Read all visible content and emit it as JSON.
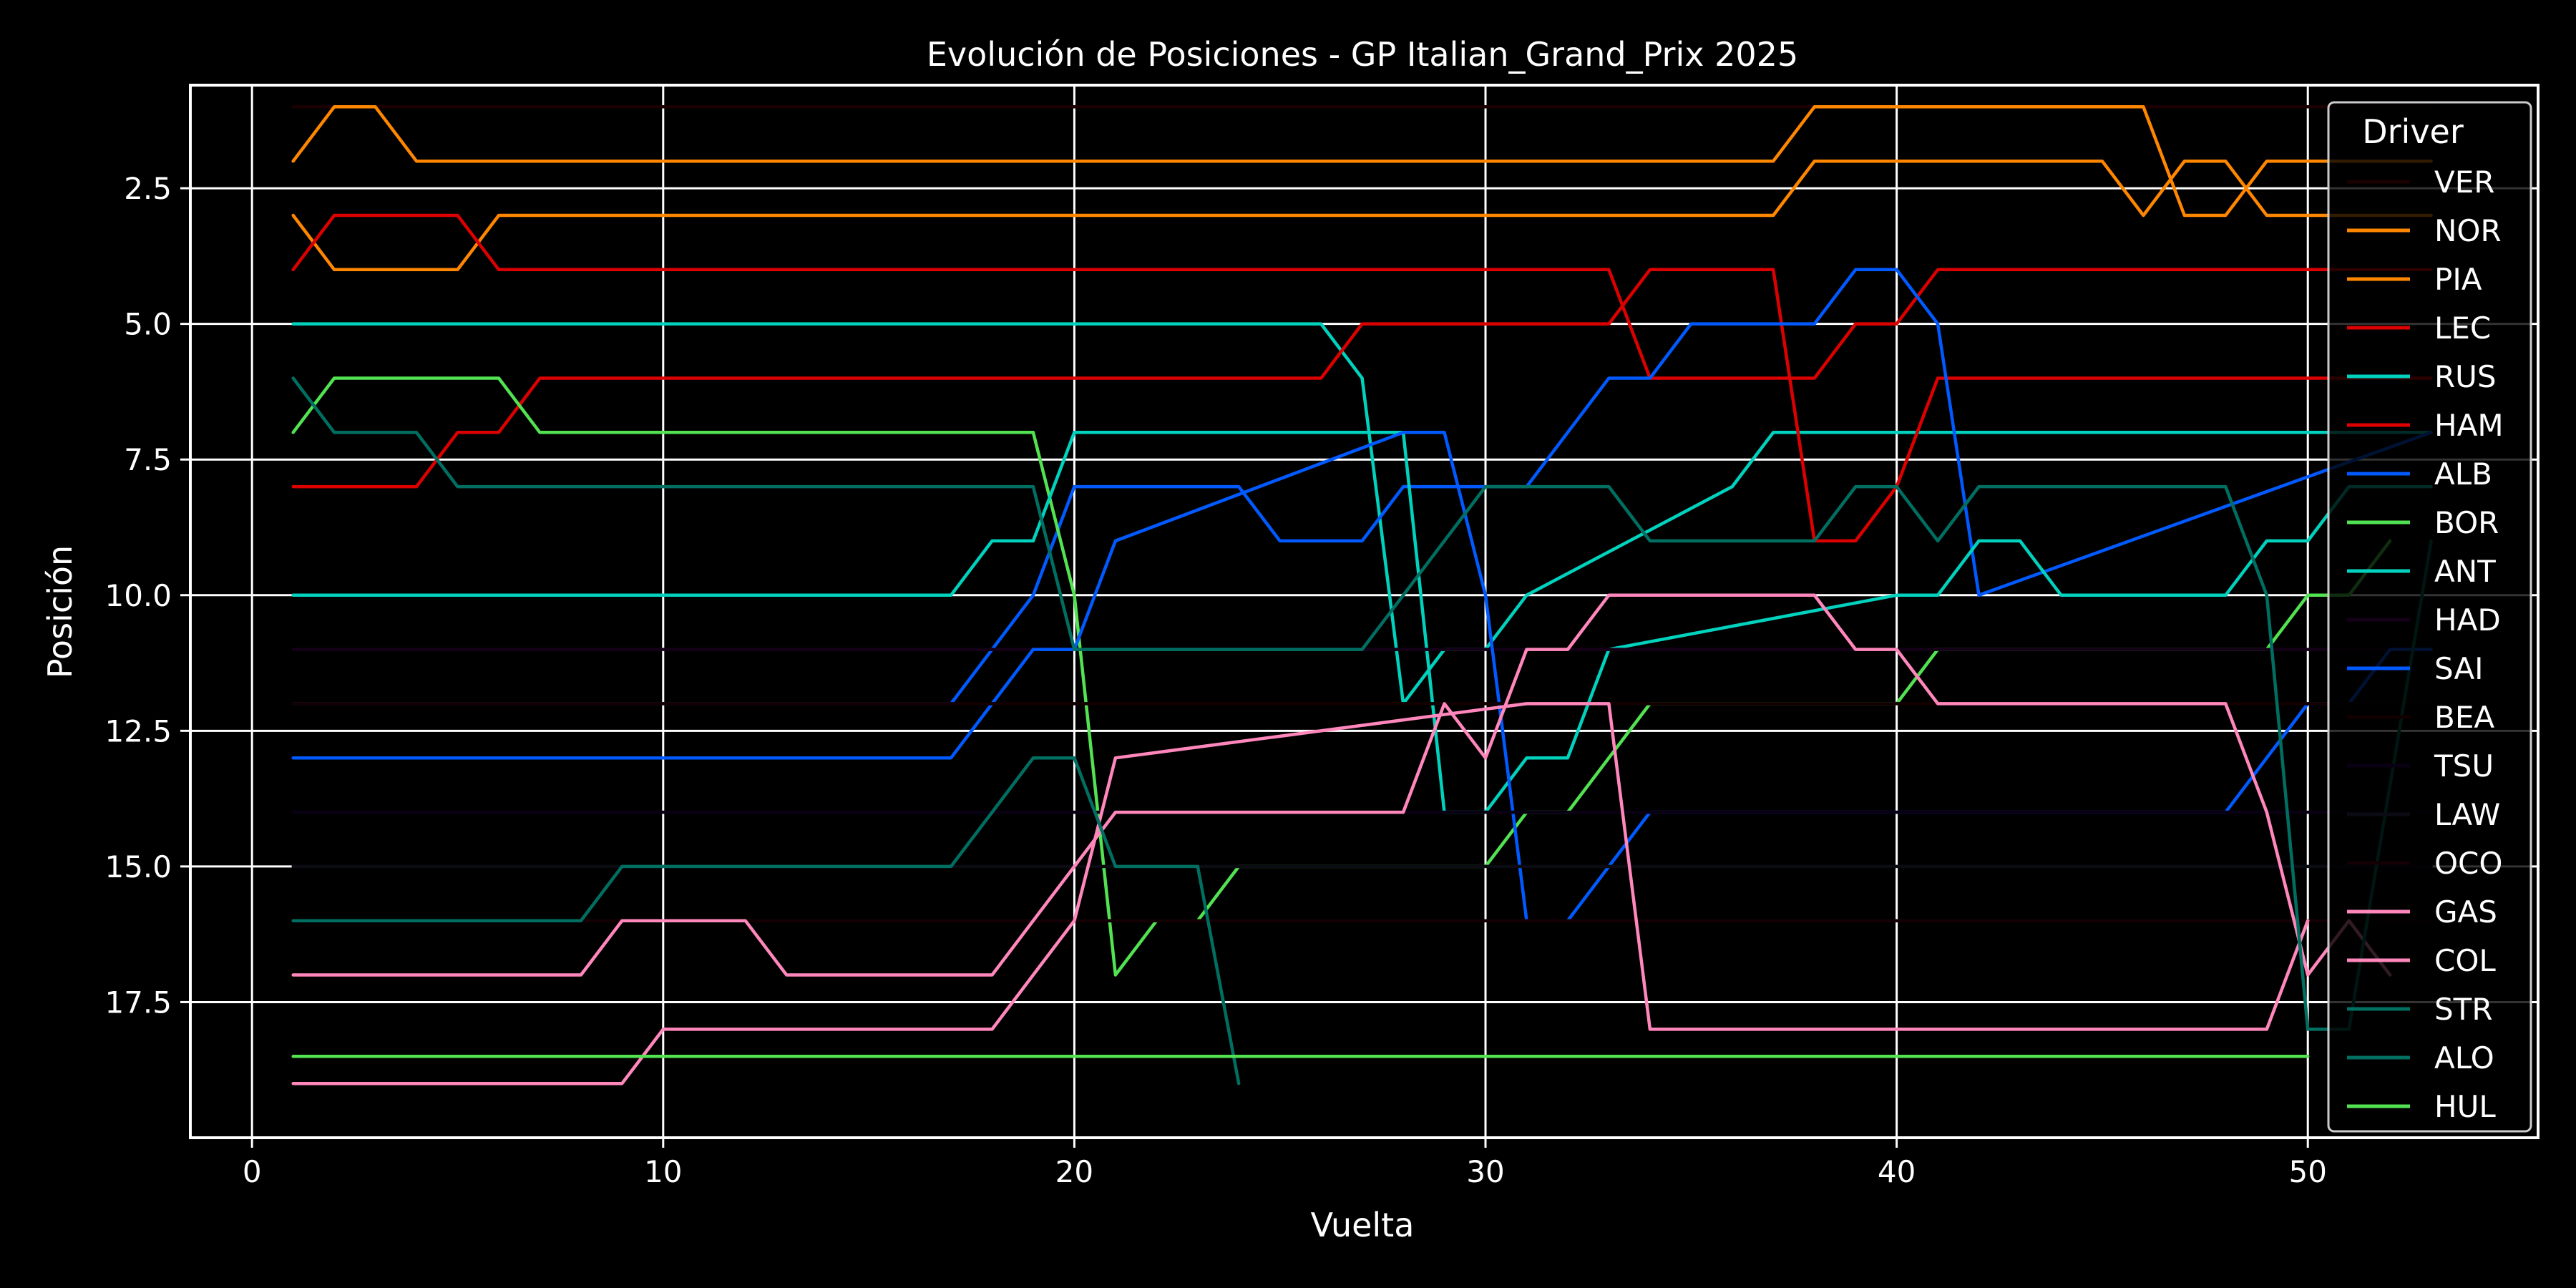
{
  "chart_data": {
    "type": "line",
    "title": "Evolución de Posiciones - GP Italian_Grand_Prix 2025",
    "xlabel": "Vuelta",
    "ylabel": "Posición",
    "xlim": [
      -1.5,
      55.6
    ],
    "ylim": [
      20.0,
      0.6
    ],
    "y_inverted": true,
    "xticks": [
      0,
      10,
      20,
      30,
      40,
      50
    ],
    "yticks": [
      2.5,
      5.0,
      7.5,
      10.0,
      12.5,
      15.0,
      17.5
    ],
    "ytick_labels": [
      "2.5",
      "5.0",
      "7.5",
      "10.0",
      "12.5",
      "15.0",
      "17.5"
    ],
    "grid": true,
    "legend_title": "Driver",
    "legend_position": "right",
    "series": [
      {
        "name": "VER",
        "color": "#1a0000",
        "dash": "solid",
        "x": [
          1,
          53
        ],
        "y": [
          1,
          1
        ]
      },
      {
        "name": "NOR",
        "color": "#ff8700",
        "dash": "solid",
        "x": [
          1,
          2,
          3,
          4,
          5,
          37,
          38,
          46,
          47,
          48,
          49,
          53
        ],
        "y": [
          2,
          1,
          1,
          2,
          2,
          2,
          1,
          1,
          3,
          3,
          2,
          2
        ]
      },
      {
        "name": "PIA",
        "color": "#ff8700",
        "dash": "solid",
        "x": [
          1,
          2,
          5,
          6,
          37,
          38,
          45,
          46,
          47,
          48,
          49,
          53
        ],
        "y": [
          3,
          4,
          4,
          3,
          3,
          2,
          2,
          3,
          2,
          2,
          3,
          3
        ]
      },
      {
        "name": "LEC",
        "color": "#dc0000",
        "dash": "solid",
        "x": [
          1,
          2,
          5,
          6,
          33,
          34,
          38,
          39,
          40,
          41,
          53
        ],
        "y": [
          4,
          3,
          3,
          4,
          4,
          6,
          6,
          5,
          5,
          4,
          4
        ]
      },
      {
        "name": "RUS",
        "color": "#00d2be",
        "dash": "solid",
        "x": [
          1,
          26,
          27,
          28,
          29,
          30,
          31,
          36,
          37,
          53
        ],
        "y": [
          5,
          5,
          6,
          12,
          11,
          11,
          10,
          8,
          7,
          7
        ]
      },
      {
        "name": "HAM",
        "color": "#dc0000",
        "dash": "solid",
        "x": [
          1,
          4,
          5,
          6,
          7,
          26,
          27,
          33,
          34,
          37,
          38,
          39,
          40,
          41,
          42,
          53
        ],
        "y": [
          8,
          8,
          7,
          7,
          6,
          6,
          5,
          5,
          4,
          4,
          9,
          9,
          8,
          6,
          6,
          6
        ]
      },
      {
        "name": "ALB",
        "color": "#005aff",
        "dash": "solid",
        "x": [
          1,
          17,
          18,
          19,
          20,
          21,
          24,
          25,
          27,
          28,
          31,
          32,
          33,
          34,
          35,
          36,
          38,
          39,
          40,
          41,
          42,
          53
        ],
        "y": [
          12,
          12,
          11,
          10,
          8,
          8,
          8,
          9,
          9,
          8,
          8,
          7,
          6,
          6,
          5,
          5,
          5,
          4,
          4,
          5,
          10,
          7
        ]
      },
      {
        "name": "BOR",
        "color": "#52e252",
        "dash": "solid",
        "x": [
          1,
          2,
          6,
          7,
          19,
          20,
          21,
          22,
          23,
          24,
          30,
          31,
          32,
          33,
          34,
          40,
          41,
          49,
          50,
          51,
          52
        ],
        "y": [
          7,
          6,
          6,
          7,
          7,
          10,
          17,
          16,
          16,
          15,
          15,
          14,
          14,
          13,
          12,
          12,
          11,
          11,
          10,
          10,
          9
        ]
      },
      {
        "name": "ANT",
        "color": "#00d2be",
        "dash": "solid",
        "x": [
          1,
          17,
          18,
          19,
          20,
          27,
          28,
          29,
          30,
          31,
          32,
          33,
          40,
          41,
          42,
          43,
          44,
          48,
          49,
          50,
          51,
          53
        ],
        "y": [
          10,
          10,
          9,
          9,
          7,
          7,
          7,
          14,
          14,
          13,
          13,
          11,
          10,
          10,
          9,
          9,
          10,
          10,
          9,
          9,
          8,
          8
        ]
      },
      {
        "name": "HAD",
        "color": "#160018",
        "dash": "solid",
        "x": [
          1,
          53
        ],
        "y": [
          11,
          11
        ]
      },
      {
        "name": "SAI",
        "color": "#005aff",
        "dash": "solid",
        "x": [
          1,
          17,
          18,
          19,
          20,
          21,
          28,
          29,
          30,
          31,
          32,
          33,
          34,
          48,
          49,
          50,
          51,
          52,
          53
        ],
        "y": [
          13,
          13,
          12,
          11,
          11,
          9,
          7,
          7,
          10,
          16,
          16,
          15,
          14,
          14,
          13,
          12,
          12,
          11,
          11
        ]
      },
      {
        "name": "BEA",
        "color": "#120000",
        "dash": "solid",
        "x": [
          1,
          53
        ],
        "y": [
          12,
          12
        ]
      },
      {
        "name": "TSU",
        "color": "#0a0014",
        "dash": "solid",
        "x": [
          1,
          53
        ],
        "y": [
          14,
          14
        ]
      },
      {
        "name": "LAW",
        "color": "#0b0b14",
        "dash": "solid",
        "x": [
          1,
          53
        ],
        "y": [
          15,
          15
        ]
      },
      {
        "name": "OCO",
        "color": "#140004",
        "dash": "solid",
        "x": [
          1,
          53
        ],
        "y": [
          16,
          16
        ]
      },
      {
        "name": "GAS",
        "color": "#ff87bc",
        "dash": "solid",
        "x": [
          1,
          8,
          9,
          12,
          13,
          18,
          19,
          20,
          21,
          28,
          29,
          30,
          31,
          32,
          33,
          34,
          38,
          39,
          40,
          41,
          48,
          49,
          50,
          51,
          52
        ],
        "y": [
          17,
          17,
          16,
          16,
          17,
          17,
          16,
          15,
          14,
          14,
          12,
          13,
          11,
          11,
          10,
          10,
          10,
          11,
          11,
          12,
          12,
          14,
          17,
          16,
          17
        ]
      },
      {
        "name": "COL",
        "color": "#ff87bc",
        "dash": "solid",
        "x": [
          1,
          9,
          10,
          18,
          19,
          20,
          21,
          31,
          32,
          33,
          34,
          49,
          50
        ],
        "y": [
          19,
          19,
          18,
          18,
          17,
          16,
          13,
          12,
          12,
          12,
          18,
          18,
          16
        ]
      },
      {
        "name": "STR",
        "color": "#006f62",
        "dash": "solid",
        "x": [
          1,
          8,
          9,
          17,
          18,
          19,
          20,
          21,
          23,
          24
        ],
        "y": [
          16,
          16,
          15,
          15,
          14,
          13,
          13,
          15,
          15,
          19
        ]
      },
      {
        "name": "ALO",
        "color": "#006f62",
        "dash": "solid",
        "x": [
          1,
          2,
          4,
          5,
          19,
          20,
          21,
          27,
          28,
          29,
          30,
          33,
          34,
          38,
          39,
          40,
          41,
          42,
          48,
          49,
          50,
          51,
          53
        ],
        "y": [
          6,
          7,
          7,
          8,
          8,
          11,
          11,
          11,
          10,
          9,
          8,
          8,
          9,
          9,
          8,
          8,
          9,
          8,
          8,
          10,
          18,
          18,
          9
        ]
      },
      {
        "name": "HUL",
        "color": "#52e252",
        "dash": "solid",
        "x": [
          1,
          50
        ],
        "y": [
          18.5,
          18.5
        ]
      }
    ]
  }
}
